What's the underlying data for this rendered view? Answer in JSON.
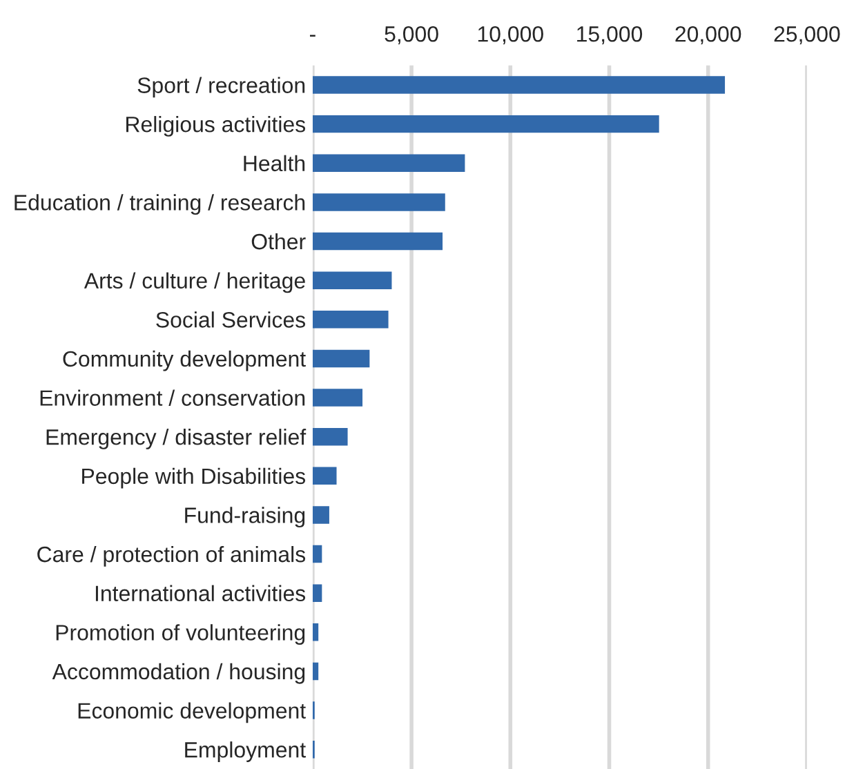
{
  "chart_data": {
    "type": "bar",
    "orientation": "horizontal",
    "categories": [
      "Sport / recreation",
      "Religious activities",
      "Health",
      "Education / training / research",
      "Other",
      "Arts / culture / heritage",
      "Social Services",
      "Community development",
      "Environment / conservation",
      "Emergency / disaster relief",
      "People with Disabilities",
      "Fund-raising",
      "Care / protection of animals",
      "International activities",
      "Promotion of volunteering",
      "Accommodation / housing",
      "Economic development",
      "Employment"
    ],
    "values": [
      20850,
      17520,
      7700,
      6700,
      6570,
      4000,
      3830,
      2880,
      2520,
      1770,
      1210,
      840,
      470,
      470,
      290,
      290,
      100,
      100
    ],
    "color": "#3169ab",
    "xlim": [
      0,
      25000
    ],
    "xticks": [
      {
        "value": 0,
        "label": "-"
      },
      {
        "value": 5000,
        "label": "5,000"
      },
      {
        "value": 10000,
        "label": "10,000"
      },
      {
        "value": 15000,
        "label": "15,000"
      },
      {
        "value": 20000,
        "label": "20,000"
      },
      {
        "value": 25000,
        "label": "25,000"
      }
    ],
    "grid": "x"
  }
}
